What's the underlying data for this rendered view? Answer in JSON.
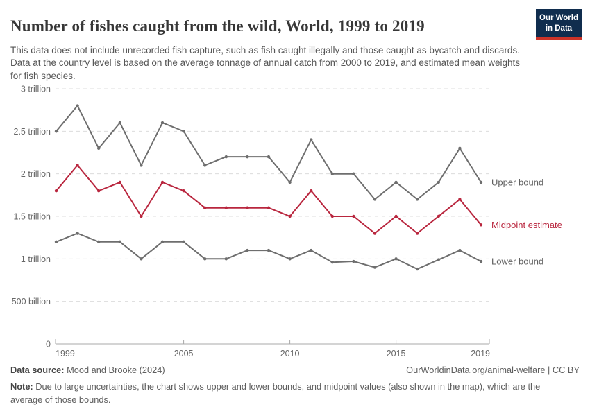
{
  "header": {
    "title": "Number of fishes caught from the wild, World, 1999 to 2019",
    "subtitle": "This data does not include unrecorded fish capture, such as fish caught illegally and those caught as bycatch and discards. Data at the country level is based on the average tonnage of annual catch from 2000 to 2019, and estimated mean weights for fish species.",
    "logo": {
      "line1": "Our World",
      "line2": "in Data"
    }
  },
  "chart_data": {
    "type": "line",
    "title": "Number of fishes caught from the wild, World, 1999 to 2019",
    "entity": "World",
    "x": [
      1999,
      2000,
      2001,
      2002,
      2003,
      2004,
      2005,
      2006,
      2007,
      2008,
      2009,
      2010,
      2011,
      2012,
      2013,
      2014,
      2015,
      2016,
      2017,
      2018,
      2019
    ],
    "unit": "fish caught per year",
    "ylim": [
      0,
      3
    ],
    "y_unit_scale": "trillions",
    "grid": "horizontal-dashed",
    "legend_position": "labels-right-of-lines",
    "y_ticks": [
      {
        "value": 0,
        "label": "0"
      },
      {
        "value": 0.5,
        "label": "500 billion"
      },
      {
        "value": 1,
        "label": "1 trillion"
      },
      {
        "value": 1.5,
        "label": "1.5 trillion"
      },
      {
        "value": 2,
        "label": "2 trillion"
      },
      {
        "value": 2.5,
        "label": "2.5 trillion"
      },
      {
        "value": 3,
        "label": "3 trillion"
      }
    ],
    "x_ticks": [
      {
        "year": 1999,
        "label": "1999",
        "anchor": "start"
      },
      {
        "year": 2005,
        "label": "2005",
        "anchor": "middle"
      },
      {
        "year": 2010,
        "label": "2010",
        "anchor": "middle"
      },
      {
        "year": 2015,
        "label": "2015",
        "anchor": "middle"
      },
      {
        "year": 2019,
        "label": "2019",
        "anchor": "end"
      }
    ],
    "series": [
      {
        "name": "Upper bound",
        "color": "#6e6e6e",
        "values": [
          2.5,
          2.8,
          2.3,
          2.6,
          2.1,
          2.6,
          2.5,
          2.1,
          2.2,
          2.2,
          2.2,
          1.9,
          2.4,
          2.0,
          2.0,
          1.7,
          1.9,
          1.7,
          1.9,
          2.3,
          1.9
        ]
      },
      {
        "name": "Midpoint estimate",
        "color": "#b9263e",
        "values": [
          1.8,
          2.1,
          1.8,
          1.9,
          1.5,
          1.9,
          1.8,
          1.6,
          1.6,
          1.6,
          1.6,
          1.5,
          1.8,
          1.5,
          1.5,
          1.3,
          1.5,
          1.3,
          1.5,
          1.7,
          1.4
        ]
      },
      {
        "name": "Lower bound",
        "color": "#6e6e6e",
        "values": [
          1.2,
          1.3,
          1.2,
          1.2,
          1.0,
          1.2,
          1.2,
          1.0,
          1.0,
          1.1,
          1.1,
          1.0,
          1.1,
          0.96,
          0.97,
          0.9,
          1.0,
          0.88,
          0.99,
          1.1,
          0.97
        ]
      }
    ]
  },
  "footer": {
    "source_label": "Data source:",
    "source_value": " Mood and Brooke (2024)",
    "rights": "OurWorldinData.org/animal-welfare | CC BY",
    "note_label": "Note:",
    "note_value": " Due to large uncertainties, the chart shows upper and lower bounds, and midpoint values (also shown in the map), which are the average of those bounds."
  },
  "colors": {
    "accent_red": "#b9263e",
    "line_gray": "#6e6e6e",
    "grid": "#dcdcdc",
    "axis": "#a8a8a8",
    "tick_label": "#666666",
    "series_label_gray": "#5f5f5f",
    "logo_bg": "#102d4e",
    "logo_stripe": "#cc3328"
  }
}
